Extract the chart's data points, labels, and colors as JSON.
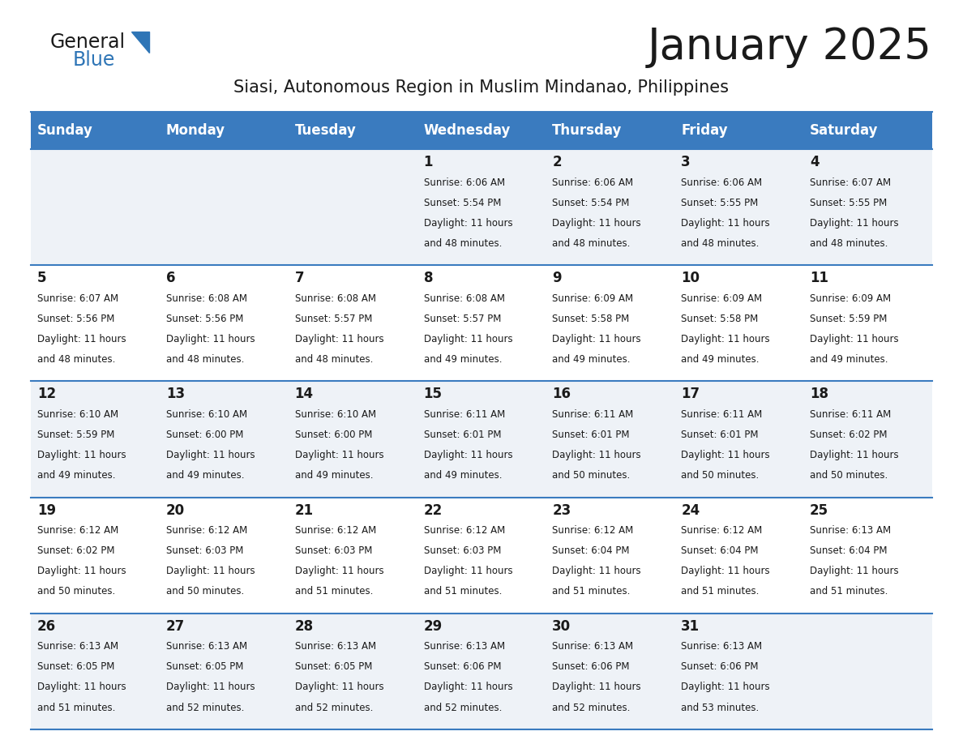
{
  "title": "January 2025",
  "subtitle": "Siasi, Autonomous Region in Muslim Mindanao, Philippines",
  "header_bg_color": "#3a7bbf",
  "header_text_color": "#ffffff",
  "row_bg_even": "#eef2f7",
  "row_bg_odd": "#ffffff",
  "cell_border_color": "#3a7bbf",
  "days_of_week": [
    "Sunday",
    "Monday",
    "Tuesday",
    "Wednesday",
    "Thursday",
    "Friday",
    "Saturday"
  ],
  "calendar": [
    [
      {
        "day": null,
        "sunrise": null,
        "sunset": null,
        "daylight": null
      },
      {
        "day": null,
        "sunrise": null,
        "sunset": null,
        "daylight": null
      },
      {
        "day": null,
        "sunrise": null,
        "sunset": null,
        "daylight": null
      },
      {
        "day": 1,
        "sunrise": "6:06 AM",
        "sunset": "5:54 PM",
        "daylight": "11 hours and 48 minutes."
      },
      {
        "day": 2,
        "sunrise": "6:06 AM",
        "sunset": "5:54 PM",
        "daylight": "11 hours and 48 minutes."
      },
      {
        "day": 3,
        "sunrise": "6:06 AM",
        "sunset": "5:55 PM",
        "daylight": "11 hours and 48 minutes."
      },
      {
        "day": 4,
        "sunrise": "6:07 AM",
        "sunset": "5:55 PM",
        "daylight": "11 hours and 48 minutes."
      }
    ],
    [
      {
        "day": 5,
        "sunrise": "6:07 AM",
        "sunset": "5:56 PM",
        "daylight": "11 hours and 48 minutes."
      },
      {
        "day": 6,
        "sunrise": "6:08 AM",
        "sunset": "5:56 PM",
        "daylight": "11 hours and 48 minutes."
      },
      {
        "day": 7,
        "sunrise": "6:08 AM",
        "sunset": "5:57 PM",
        "daylight": "11 hours and 48 minutes."
      },
      {
        "day": 8,
        "sunrise": "6:08 AM",
        "sunset": "5:57 PM",
        "daylight": "11 hours and 49 minutes."
      },
      {
        "day": 9,
        "sunrise": "6:09 AM",
        "sunset": "5:58 PM",
        "daylight": "11 hours and 49 minutes."
      },
      {
        "day": 10,
        "sunrise": "6:09 AM",
        "sunset": "5:58 PM",
        "daylight": "11 hours and 49 minutes."
      },
      {
        "day": 11,
        "sunrise": "6:09 AM",
        "sunset": "5:59 PM",
        "daylight": "11 hours and 49 minutes."
      }
    ],
    [
      {
        "day": 12,
        "sunrise": "6:10 AM",
        "sunset": "5:59 PM",
        "daylight": "11 hours and 49 minutes."
      },
      {
        "day": 13,
        "sunrise": "6:10 AM",
        "sunset": "6:00 PM",
        "daylight": "11 hours and 49 minutes."
      },
      {
        "day": 14,
        "sunrise": "6:10 AM",
        "sunset": "6:00 PM",
        "daylight": "11 hours and 49 minutes."
      },
      {
        "day": 15,
        "sunrise": "6:11 AM",
        "sunset": "6:01 PM",
        "daylight": "11 hours and 49 minutes."
      },
      {
        "day": 16,
        "sunrise": "6:11 AM",
        "sunset": "6:01 PM",
        "daylight": "11 hours and 50 minutes."
      },
      {
        "day": 17,
        "sunrise": "6:11 AM",
        "sunset": "6:01 PM",
        "daylight": "11 hours and 50 minutes."
      },
      {
        "day": 18,
        "sunrise": "6:11 AM",
        "sunset": "6:02 PM",
        "daylight": "11 hours and 50 minutes."
      }
    ],
    [
      {
        "day": 19,
        "sunrise": "6:12 AM",
        "sunset": "6:02 PM",
        "daylight": "11 hours and 50 minutes."
      },
      {
        "day": 20,
        "sunrise": "6:12 AM",
        "sunset": "6:03 PM",
        "daylight": "11 hours and 50 minutes."
      },
      {
        "day": 21,
        "sunrise": "6:12 AM",
        "sunset": "6:03 PM",
        "daylight": "11 hours and 51 minutes."
      },
      {
        "day": 22,
        "sunrise": "6:12 AM",
        "sunset": "6:03 PM",
        "daylight": "11 hours and 51 minutes."
      },
      {
        "day": 23,
        "sunrise": "6:12 AM",
        "sunset": "6:04 PM",
        "daylight": "11 hours and 51 minutes."
      },
      {
        "day": 24,
        "sunrise": "6:12 AM",
        "sunset": "6:04 PM",
        "daylight": "11 hours and 51 minutes."
      },
      {
        "day": 25,
        "sunrise": "6:13 AM",
        "sunset": "6:04 PM",
        "daylight": "11 hours and 51 minutes."
      }
    ],
    [
      {
        "day": 26,
        "sunrise": "6:13 AM",
        "sunset": "6:05 PM",
        "daylight": "11 hours and 51 minutes."
      },
      {
        "day": 27,
        "sunrise": "6:13 AM",
        "sunset": "6:05 PM",
        "daylight": "11 hours and 52 minutes."
      },
      {
        "day": 28,
        "sunrise": "6:13 AM",
        "sunset": "6:05 PM",
        "daylight": "11 hours and 52 minutes."
      },
      {
        "day": 29,
        "sunrise": "6:13 AM",
        "sunset": "6:06 PM",
        "daylight": "11 hours and 52 minutes."
      },
      {
        "day": 30,
        "sunrise": "6:13 AM",
        "sunset": "6:06 PM",
        "daylight": "11 hours and 52 minutes."
      },
      {
        "day": 31,
        "sunrise": "6:13 AM",
        "sunset": "6:06 PM",
        "daylight": "11 hours and 53 minutes."
      },
      {
        "day": null,
        "sunrise": null,
        "sunset": null,
        "daylight": null
      }
    ]
  ],
  "logo_triangle_color": "#2e75b6",
  "title_fontsize": 38,
  "subtitle_fontsize": 15,
  "header_fontsize": 12,
  "day_num_fontsize": 12,
  "cell_text_fontsize": 8.5
}
